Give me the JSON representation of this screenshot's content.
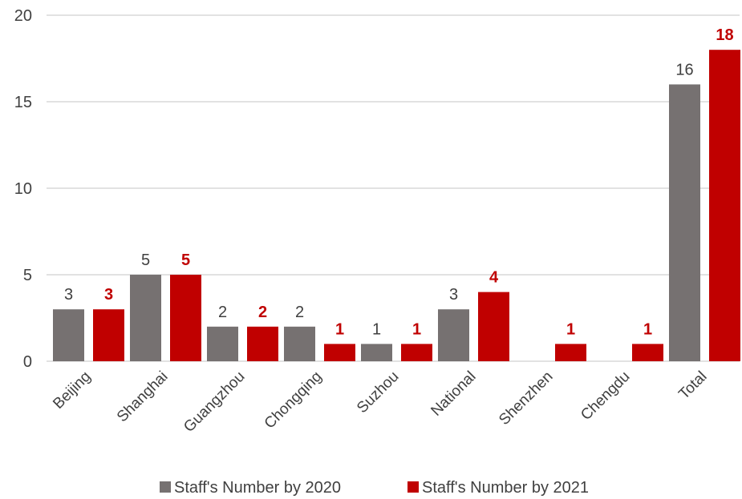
{
  "chart_data": {
    "type": "bar",
    "categories": [
      "Beijing",
      "Shanghai",
      "Guangzhou",
      "Chongqing",
      "Suzhou",
      "National",
      "Shenzhen",
      "Chengdu",
      "Total"
    ],
    "series": [
      {
        "name": "Staff's Number by 2020",
        "values": [
          3,
          5,
          2,
          2,
          1,
          3,
          null,
          null,
          16
        ],
        "color": "#767171",
        "label_color": "#404040",
        "label_bold": false
      },
      {
        "name": "Staff's Number by 2021",
        "values": [
          3,
          5,
          2,
          1,
          1,
          4,
          1,
          1,
          18
        ],
        "color": "#C00000",
        "label_color": "#C00000",
        "label_bold": true
      }
    ],
    "yticks": [
      "0",
      "5",
      "10",
      "15",
      "20"
    ],
    "ylim": [
      0,
      20
    ],
    "grid": true,
    "gridline_color": "#D9D9D9",
    "legend_position": "bottom"
  }
}
